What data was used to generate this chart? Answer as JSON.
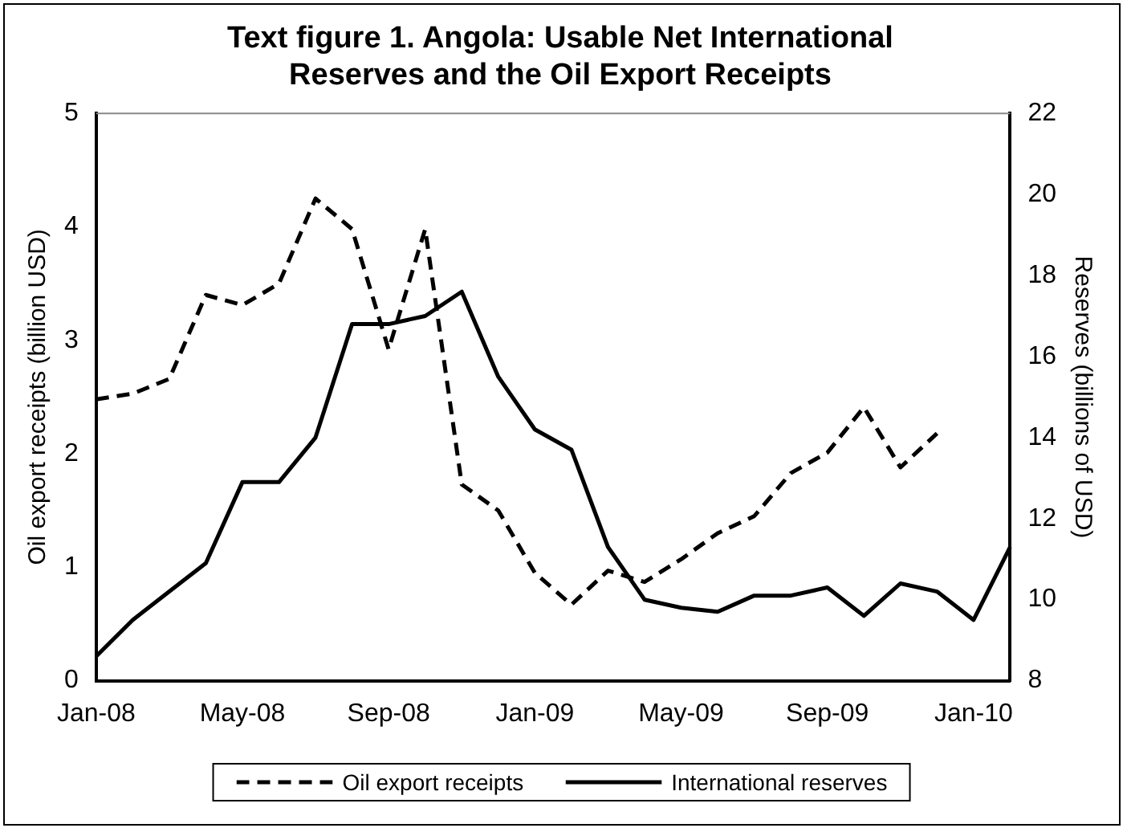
{
  "chart_data": {
    "type": "line",
    "title": "Text figure 1. Angola: Usable Net International Reserves and the Oil Export Receipts",
    "ylabel": "Oil export receipts (billion USD)",
    "y2label": "Reserves (billions of USD)",
    "categories": [
      "Jan-08",
      null,
      null,
      null,
      "May-08",
      null,
      null,
      null,
      "Sep-08",
      null,
      null,
      null,
      "Jan-09",
      null,
      null,
      null,
      "May-09",
      null,
      null,
      null,
      "Sep-09",
      null,
      null,
      null,
      "Jan-10",
      null
    ],
    "series": [
      {
        "name": "Oil export receipts",
        "color": "#000000",
        "line_style": "dashed",
        "values": [
          2.48,
          2.53,
          2.66,
          3.4,
          3.31,
          3.5,
          4.25,
          3.98,
          2.92,
          3.98,
          1.73,
          1.5,
          0.95,
          0.67,
          0.97,
          0.87,
          1.07,
          1.3,
          1.45,
          1.83,
          2.01,
          2.41,
          1.88,
          2.18,
          null,
          null
        ]
      },
      {
        "name": "International reserves",
        "color": "#000000",
        "line_style": "solid",
        "axis": "y2",
        "values": [
          8.6,
          9.5,
          10.2,
          10.9,
          12.9,
          12.9,
          14.0,
          16.8,
          16.8,
          17.0,
          17.6,
          15.5,
          14.2,
          13.7,
          11.3,
          10.0,
          9.8,
          9.7,
          10.1,
          10.1,
          10.3,
          9.6,
          10.4,
          10.2,
          9.5,
          11.3
        ]
      }
    ],
    "ylim": [
      0,
      5
    ],
    "yticks": [
      0,
      1,
      2,
      3,
      4,
      5
    ],
    "y2lim": [
      8,
      22
    ],
    "y2ticks": [
      8,
      10,
      12,
      14,
      16,
      18,
      20,
      22
    ],
    "grid": false,
    "legend": "bottom",
    "marker": "none"
  }
}
